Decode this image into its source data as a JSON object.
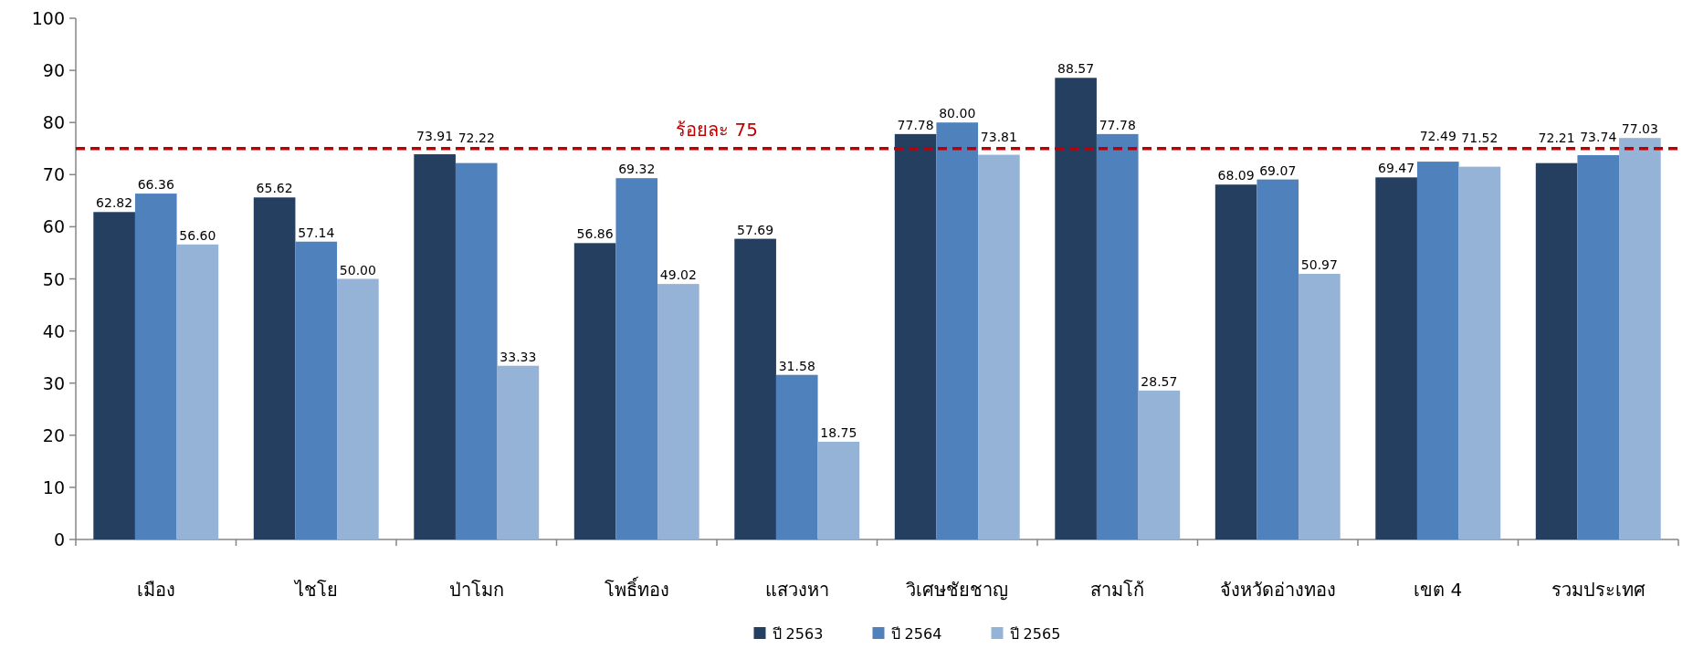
{
  "chart_data": {
    "type": "bar",
    "categories": [
      "เมือง",
      "ไชโย",
      "ป่าโมก",
      "โพธิ์ทอง",
      "แสวงหา",
      "วิเศษชัยชาญ",
      "สามโก้",
      "จังหวัดอ่างทอง",
      "เขต 4",
      "รวมประเทศ"
    ],
    "series": [
      {
        "name": "ปี 2563",
        "color": "#243f60",
        "values": [
          62.82,
          65.62,
          73.91,
          56.86,
          57.69,
          77.78,
          88.57,
          68.09,
          69.47,
          72.21
        ],
        "value_labels": [
          "62.82",
          "65.62",
          "73.91",
          "56.86",
          "57.69",
          "77.78",
          "88.57",
          "68.09",
          "69.47",
          "72.21"
        ]
      },
      {
        "name": "ปี 2564",
        "color": "#4f81bd",
        "values": [
          66.36,
          57.14,
          72.22,
          69.32,
          31.58,
          80.0,
          77.78,
          69.07,
          72.49,
          73.74
        ],
        "value_labels": [
          "66.36",
          "57.14",
          "72.22",
          "69.32",
          "31.58",
          "80.00",
          "77.78",
          "69.07",
          "72.49",
          "73.74"
        ]
      },
      {
        "name": "ปี 2565",
        "color": "#95b3d7",
        "values": [
          56.6,
          50.0,
          33.33,
          49.02,
          18.75,
          73.81,
          28.57,
          50.97,
          71.52,
          77.03
        ],
        "value_labels": [
          "56.60",
          "50.00",
          "33.33",
          "49.02",
          "18.75",
          "73.81",
          "28.57",
          "50.97",
          "71.52",
          "77.03"
        ]
      }
    ],
    "ylim": [
      0,
      100
    ],
    "yticks": [
      0,
      10,
      20,
      30,
      40,
      50,
      60,
      70,
      80,
      90,
      100
    ],
    "ref_lines": [
      {
        "axis": "y",
        "value": 75,
        "label": "ร้อยละ 75",
        "color": "#c00000",
        "line_style": "dashed"
      }
    ],
    "legend": "bottom"
  }
}
